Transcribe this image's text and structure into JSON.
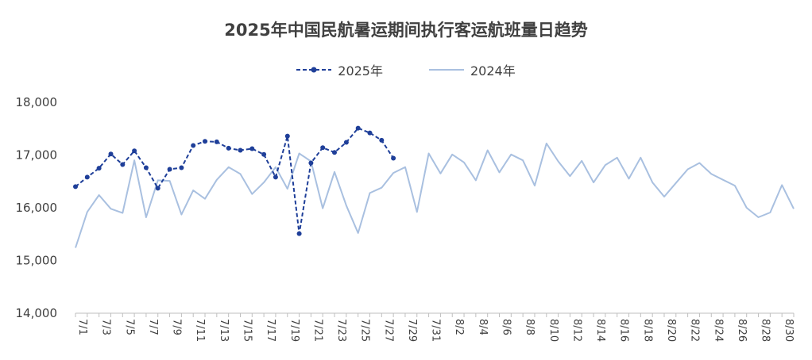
{
  "chart_data": {
    "type": "line",
    "title": "2025年中国民航暑运期间执行客运航班量日趋势",
    "xlabel": "",
    "ylabel": "",
    "ylim": [
      14000,
      18000
    ],
    "yticks": [
      "14,000",
      "15,000",
      "16,000",
      "17,000",
      "18,000"
    ],
    "ytick_values": [
      14000,
      15000,
      16000,
      17000,
      18000
    ],
    "legend_position": "top-center",
    "grid": false,
    "x_tick_labels": [
      "7/1",
      "7/3",
      "7/5",
      "7/7",
      "7/9",
      "7/11",
      "7/13",
      "7/15",
      "7/17",
      "7/19",
      "7/21",
      "7/23",
      "7/25",
      "7/27",
      "7/29",
      "7/31",
      "8/2",
      "8/4",
      "8/6",
      "8/8",
      "8/10",
      "8/12",
      "8/14",
      "8/16",
      "8/18",
      "8/20",
      "8/22",
      "8/24",
      "8/26",
      "8/28",
      "8/30"
    ],
    "series": [
      {
        "name": "2025年",
        "color": "#1f3f99",
        "marker": true,
        "values": [
          16400,
          16580,
          16750,
          17020,
          16820,
          17080,
          16760,
          16370,
          16730,
          16760,
          17180,
          17260,
          17250,
          17130,
          17090,
          17120,
          17010,
          16580,
          17360,
          15510,
          16850,
          17140,
          17050,
          17240,
          17510,
          17420,
          17280,
          16940
        ]
      },
      {
        "name": "2024年",
        "color": "#a9c0e0",
        "marker": false,
        "values": [
          15240,
          15920,
          16240,
          15980,
          15900,
          16900,
          15820,
          16520,
          16510,
          15870,
          16330,
          16170,
          16530,
          16770,
          16640,
          16260,
          16480,
          16770,
          16360,
          17030,
          16880,
          15990,
          16680,
          16040,
          15520,
          16280,
          16380,
          16660,
          16770,
          15920,
          17030,
          16650,
          17010,
          16860,
          16520,
          17090,
          16670,
          17010,
          16900,
          16420,
          17220,
          16880,
          16600,
          16890,
          16480,
          16810,
          16950,
          16550,
          16950,
          16480,
          16210,
          16470,
          16730,
          16850,
          16640,
          16530,
          16420,
          16000,
          15820,
          15910,
          16430,
          15980
        ]
      }
    ]
  }
}
